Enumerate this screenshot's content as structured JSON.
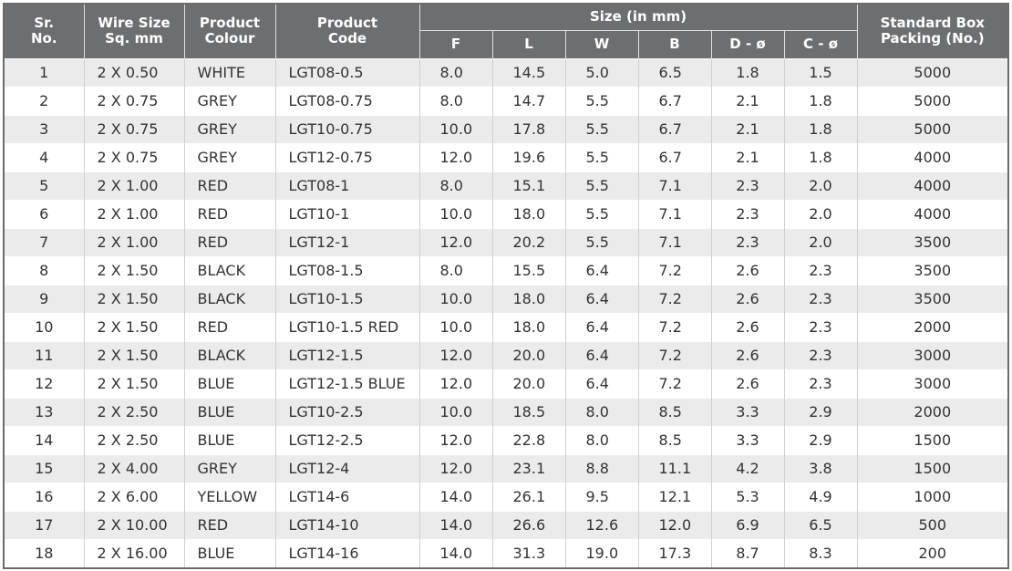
{
  "table": {
    "header": [
      "Sr.\nNo.",
      "Wire Size\nSq. mm",
      "Product\nColour",
      "Product\nCode",
      "Size (in mm)",
      "Standard Box\nPacking (No.)"
    ],
    "subheader": [
      "F",
      "L",
      "W",
      "B",
      "D - ø",
      "C - ø"
    ],
    "rows": [
      [
        "1",
        "2 X 0.50",
        "WHITE",
        "LGT08-0.5",
        "8.0",
        "14.5",
        "5.0",
        "6.5",
        "1.8",
        "1.5",
        "5000"
      ],
      [
        "2",
        "2 X 0.75",
        "GREY",
        "LGT08-0.75",
        "8.0",
        "14.7",
        "5.5",
        "6.7",
        "2.1",
        "1.8",
        "5000"
      ],
      [
        "3",
        "2 X 0.75",
        "GREY",
        "LGT10-0.75",
        "10.0",
        "17.8",
        "5.5",
        "6.7",
        "2.1",
        "1.8",
        "5000"
      ],
      [
        "4",
        "2 X 0.75",
        "GREY",
        "LGT12-0.75",
        "12.0",
        "19.6",
        "5.5",
        "6.7",
        "2.1",
        "1.8",
        "4000"
      ],
      [
        "5",
        "2 X 1.00",
        "RED",
        "LGT08-1",
        "8.0",
        "15.1",
        "5.5",
        "7.1",
        "2.3",
        "2.0",
        "4000"
      ],
      [
        "6",
        "2 X 1.00",
        "RED",
        "LGT10-1",
        "10.0",
        "18.0",
        "5.5",
        "7.1",
        "2.3",
        "2.0",
        "4000"
      ],
      [
        "7",
        "2 X 1.00",
        "RED",
        "LGT12-1",
        "12.0",
        "20.2",
        "5.5",
        "7.1",
        "2.3",
        "2.0",
        "3500"
      ],
      [
        "8",
        "2 X 1.50",
        "BLACK",
        "LGT08-1.5",
        "8.0",
        "15.5",
        "6.4",
        "7.2",
        "2.6",
        "2.3",
        "3500"
      ],
      [
        "9",
        "2 X 1.50",
        "BLACK",
        "LGT10-1.5",
        "10.0",
        "18.0",
        "6.4",
        "7.2",
        "2.6",
        "2.3",
        "3500"
      ],
      [
        "10",
        "2 X 1.50",
        "RED",
        "LGT10-1.5 RED",
        "10.0",
        "18.0",
        "6.4",
        "7.2",
        "2.6",
        "2.3",
        "2000"
      ],
      [
        "11",
        "2 X 1.50",
        "BLACK",
        "LGT12-1.5",
        "12.0",
        "20.0",
        "6.4",
        "7.2",
        "2.6",
        "2.3",
        "3000"
      ],
      [
        "12",
        "2 X 1.50",
        "BLUE",
        "LGT12-1.5 BLUE",
        "12.0",
        "20.0",
        "6.4",
        "7.2",
        "2.6",
        "2.3",
        "3000"
      ],
      [
        "13",
        "2 X 2.50",
        "BLUE",
        "LGT10-2.5",
        "10.0",
        "18.5",
        "8.0",
        "8.5",
        "3.3",
        "2.9",
        "2000"
      ],
      [
        "14",
        "2 X 2.50",
        "BLUE",
        "LGT12-2.5",
        "12.0",
        "22.8",
        "8.0",
        "8.5",
        "3.3",
        "2.9",
        "1500"
      ],
      [
        "15",
        "2 X 4.00",
        "GREY",
        "LGT12-4",
        "12.0",
        "23.1",
        "8.8",
        "11.1",
        "4.2",
        "3.8",
        "1500"
      ],
      [
        "16",
        "2 X 6.00",
        "YELLOW",
        "LGT14-6",
        "14.0",
        "26.1",
        "9.5",
        "12.1",
        "5.3",
        "4.9",
        "1000"
      ],
      [
        "17",
        "2 X 10.00",
        "RED",
        "LGT14-10",
        "14.0",
        "26.6",
        "12.6",
        "12.0",
        "6.9",
        "6.5",
        "500"
      ],
      [
        "18",
        "2 X 16.00",
        "BLUE",
        "LGT14-16",
        "14.0",
        "31.3",
        "19.0",
        "17.3",
        "8.7",
        "8.3",
        "200"
      ]
    ]
  }
}
